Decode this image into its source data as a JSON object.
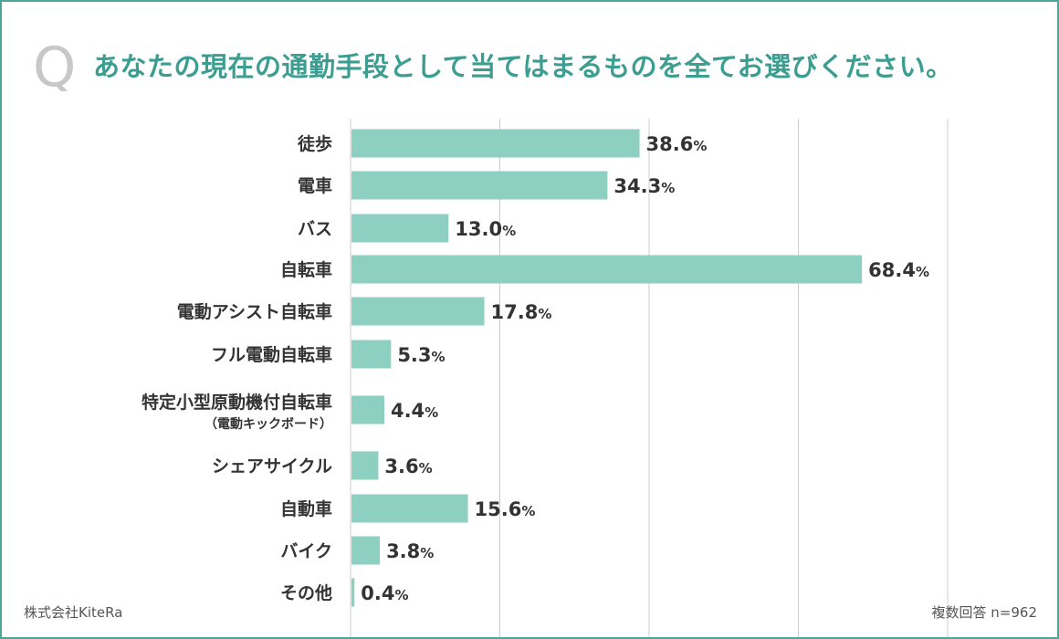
{
  "header": {
    "q_mark": "Q",
    "title": "あなたの現在の通勤手段として当てはまるものを全てお選びください。"
  },
  "footer": {
    "source": "株式会社KiteRa",
    "sample": "複数回答 n=962"
  },
  "colors": {
    "bar": "#8dcfc0",
    "border": "#4aa79a",
    "title": "#3c9e90",
    "q_mark": "#c8c8c8",
    "text": "#333333",
    "grid": "#cccccc"
  },
  "chart_data": {
    "type": "bar",
    "orientation": "horizontal",
    "title": "あなたの現在の通勤手段として当てはまるものを全てお選びください。",
    "categories": [
      {
        "label": "徒歩",
        "sublabel": ""
      },
      {
        "label": "電車",
        "sublabel": ""
      },
      {
        "label": "バス",
        "sublabel": ""
      },
      {
        "label": "自転車",
        "sublabel": ""
      },
      {
        "label": "電動アシスト自転車",
        "sublabel": ""
      },
      {
        "label": "フル電動自転車",
        "sublabel": ""
      },
      {
        "label": "特定小型原動機付自転車",
        "sublabel": "（電動キックボード）"
      },
      {
        "label": "シェアサイクル",
        "sublabel": ""
      },
      {
        "label": "自動車",
        "sublabel": ""
      },
      {
        "label": "バイク",
        "sublabel": ""
      },
      {
        "label": "その他",
        "sublabel": ""
      }
    ],
    "values": [
      38.6,
      34.3,
      13.0,
      68.4,
      17.8,
      5.3,
      4.4,
      3.6,
      15.6,
      3.8,
      0.4
    ],
    "value_labels": [
      "38.6",
      "34.3",
      "13.0",
      "68.4",
      "17.8",
      "5.3",
      "4.4",
      "3.6",
      "15.6",
      "3.8",
      "0.4"
    ],
    "unit": "%",
    "xlim": [
      0,
      80
    ],
    "gridlines": [
      0,
      20,
      40,
      60,
      80
    ],
    "grid": true,
    "legend": false
  }
}
